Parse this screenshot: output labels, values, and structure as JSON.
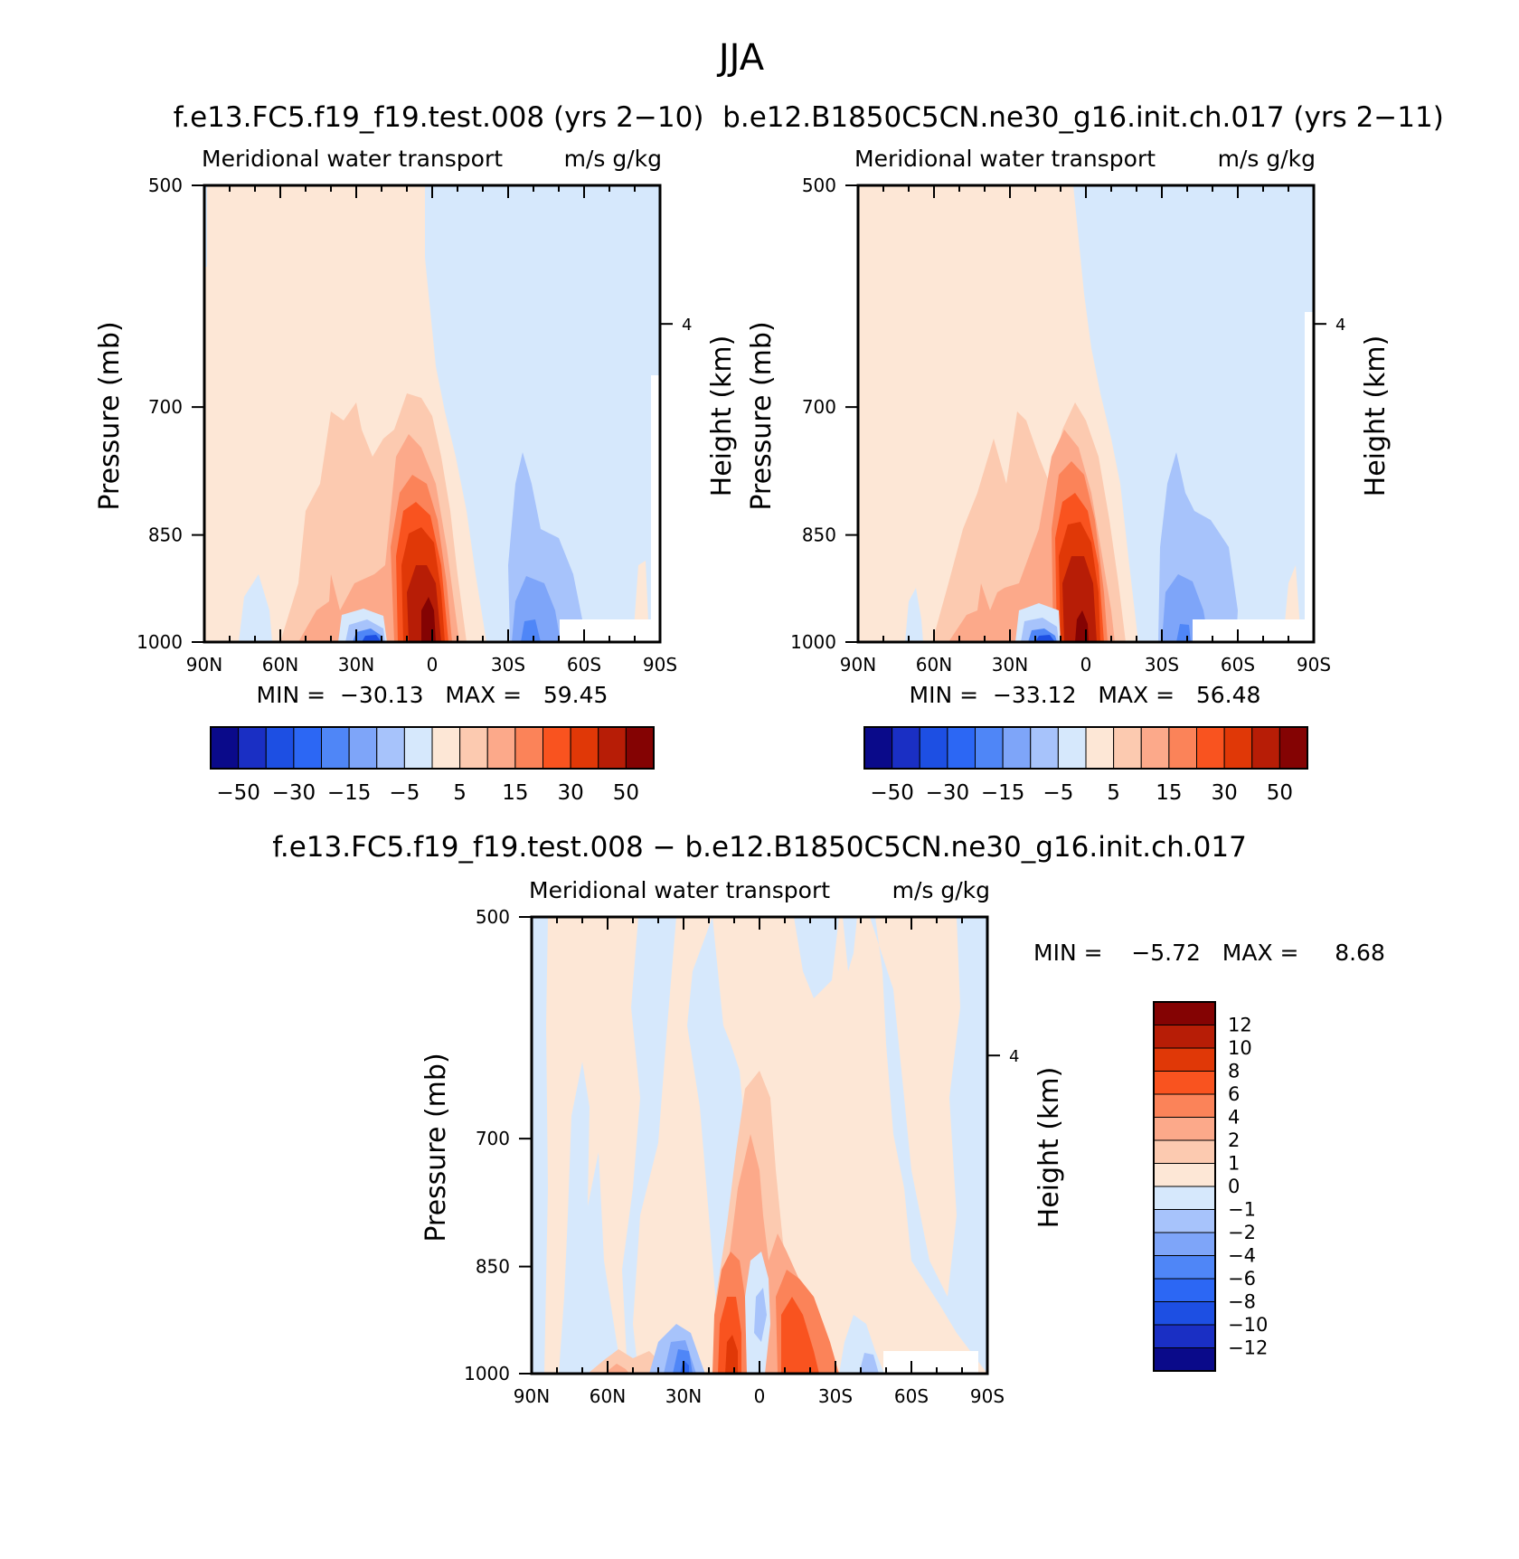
{
  "title": "JJA",
  "colors": {
    "main_scale": [
      "#0a0a8a",
      "#1a2fc4",
      "#1d4fe3",
      "#2c67f4",
      "#4f86f7",
      "#7ea5f9",
      "#a7c3fb",
      "#d6e8fc",
      "#fde7d6",
      "#fccab0",
      "#fca98a",
      "#fb8359",
      "#f9531f",
      "#e03807",
      "#b71d06",
      "#840303"
    ],
    "diff_scale": [
      "#840303",
      "#b71d06",
      "#e03807",
      "#f9531f",
      "#fb8359",
      "#fca98a",
      "#fccab0",
      "#fde7d6",
      "#d6e8fc",
      "#a7c3fb",
      "#7ea5f9",
      "#4f86f7",
      "#2c67f4",
      "#1d4fe3",
      "#1a2fc4",
      "#0a0a8a"
    ]
  },
  "panels": [
    {
      "name": "f.e13.FC5.f19_f19.test.008 (yrs 2−10)",
      "subtitle_left": "Meridional water transport",
      "subtitle_right": "m/s g/kg",
      "ylabel": "Pressure (mb)",
      "ylabel_right": "Height (km)",
      "stats": "MIN =  −30.13   MAX =   59.45"
    },
    {
      "name": "b.e12.B1850C5CN.ne30_g16.init.ch.017 (yrs 2−11)",
      "subtitle_left": "Meridional water transport",
      "subtitle_right": "m/s g/kg",
      "ylabel": "Pressure (mb)",
      "ylabel_right": "Height (km)",
      "stats": "MIN =  −33.12   MAX =   56.48"
    },
    {
      "name": "f.e13.FC5.f19_f19.test.008 − b.e12.B1850C5CN.ne30_g16.init.ch.017",
      "subtitle_left": "Meridional water transport",
      "subtitle_right": "m/s g/kg",
      "ylabel": "Pressure (mb)",
      "ylabel_right": "Height (km)",
      "stats": "MIN =    −5.72   MAX =     8.68"
    }
  ],
  "chart_data": [
    {
      "type": "heatmap",
      "title": "f.e13.FC5.f19_f19.test.008 (yrs 2−10)",
      "subtitle": "Meridional water transport",
      "units": "m/s g/kg",
      "ylabel": "Pressure (mb)",
      "ylabel_right": "Height (km)",
      "x_ticklabels": [
        "90N",
        "60N",
        "30N",
        "0",
        "30S",
        "60S",
        "90S"
      ],
      "x_tickvalues": [
        90,
        60,
        30,
        0,
        -30,
        -60,
        -90
      ],
      "xlim": [
        90,
        -90
      ],
      "y_ticklabels": [
        "500",
        "700",
        "850",
        "1000"
      ],
      "y_tickvalues": [
        500,
        700,
        850,
        1000
      ],
      "ylim": [
        1000,
        500
      ],
      "y_right_ticklabels": [
        "4"
      ],
      "y_right_tickpressure": [
        617
      ],
      "colorbar_ticks": [
        "−50",
        "−30",
        "−15",
        "−5",
        "5",
        "15",
        "30",
        "50"
      ],
      "min": -30.13,
      "max": 59.45
    },
    {
      "type": "heatmap",
      "title": "b.e12.B1850C5CN.ne30_g16.init.ch.017 (yrs 2−11)",
      "subtitle": "Meridional water transport",
      "units": "m/s g/kg",
      "ylabel": "Pressure (mb)",
      "ylabel_right": "Height (km)",
      "x_ticklabels": [
        "90N",
        "60N",
        "30N",
        "0",
        "30S",
        "60S",
        "90S"
      ],
      "x_tickvalues": [
        90,
        60,
        30,
        0,
        -30,
        -60,
        -90
      ],
      "xlim": [
        90,
        -90
      ],
      "y_ticklabels": [
        "500",
        "700",
        "850",
        "1000"
      ],
      "y_tickvalues": [
        500,
        700,
        850,
        1000
      ],
      "ylim": [
        1000,
        500
      ],
      "y_right_ticklabels": [
        "4"
      ],
      "y_right_tickpressure": [
        617
      ],
      "colorbar_ticks": [
        "−50",
        "−30",
        "−15",
        "−5",
        "5",
        "15",
        "30",
        "50"
      ],
      "min": -33.12,
      "max": 56.48
    },
    {
      "type": "heatmap",
      "title": "f.e13.FC5.f19_f19.test.008 − b.e12.B1850C5CN.ne30_g16.init.ch.017",
      "subtitle": "Meridional water transport",
      "units": "m/s g/kg",
      "ylabel": "Pressure (mb)",
      "ylabel_right": "Height (km)",
      "x_ticklabels": [
        "90N",
        "60N",
        "30N",
        "0",
        "30S",
        "60S",
        "90S"
      ],
      "x_tickvalues": [
        90,
        60,
        30,
        0,
        -30,
        -60,
        -90
      ],
      "xlim": [
        90,
        -90
      ],
      "y_ticklabels": [
        "500",
        "700",
        "850",
        "1000"
      ],
      "y_tickvalues": [
        500,
        700,
        850,
        1000
      ],
      "ylim": [
        1000,
        500
      ],
      "y_right_ticklabels": [
        "4"
      ],
      "y_right_tickpressure": [
        617
      ],
      "colorbar_ticks": [
        "12",
        "10",
        "8",
        "6",
        "4",
        "2",
        "1",
        "0",
        "−1",
        "−2",
        "−4",
        "−6",
        "−8",
        "−10",
        "−12"
      ],
      "min": -5.72,
      "max": 8.68
    }
  ]
}
